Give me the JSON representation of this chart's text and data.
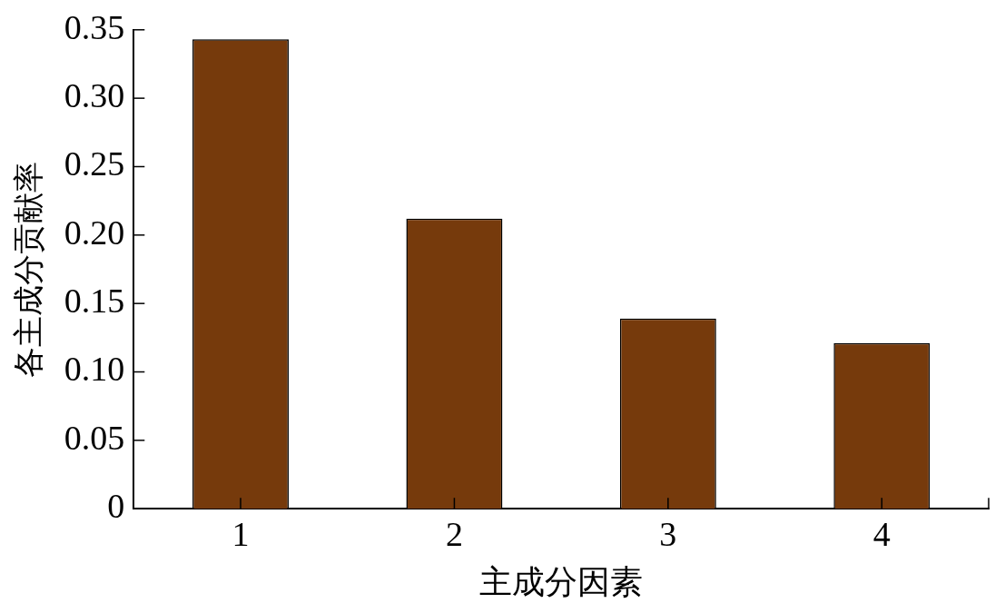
{
  "chart_data": {
    "type": "bar",
    "xlabel": "主成分因素",
    "ylabel": "各主成分贡献率",
    "categories": [
      "1",
      "2",
      "3",
      "4"
    ],
    "values": [
      0.343,
      0.212,
      0.139,
      0.121
    ],
    "color": "#763a0c",
    "ylim": [
      0,
      0.35
    ],
    "yticks": [
      {
        "value": 0,
        "label": "0"
      },
      {
        "value": 0.05,
        "label": "0.05"
      },
      {
        "value": 0.1,
        "label": "0.10"
      },
      {
        "value": 0.15,
        "label": "0.15"
      },
      {
        "value": 0.2,
        "label": "0.20"
      },
      {
        "value": 0.25,
        "label": "0.25"
      },
      {
        "value": 0.3,
        "label": "0.30"
      },
      {
        "value": 0.35,
        "label": "0.35"
      }
    ],
    "grid": false,
    "legend": false
  }
}
